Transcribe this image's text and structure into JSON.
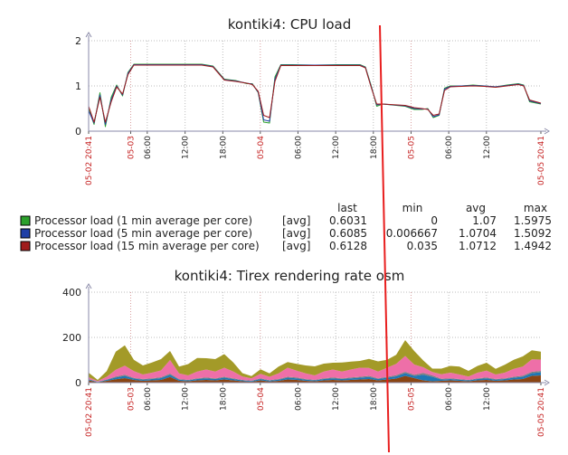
{
  "chart_data": [
    {
      "type": "line",
      "title": "kontiki4: CPU load",
      "ylim": [
        0,
        2
      ],
      "y_ticks": [
        "0",
        "1",
        "2"
      ],
      "x_ticks": [
        {
          "label": "05-02 20:41",
          "pos": 0,
          "color": "red"
        },
        {
          "label": "05-03",
          "pos": 0.093,
          "color": "red"
        },
        {
          "label": "06:00",
          "pos": 0.1296,
          "color": "black"
        },
        {
          "label": "12:00",
          "pos": 0.2133,
          "color": "black"
        },
        {
          "label": "18:00",
          "pos": 0.2967,
          "color": "black"
        },
        {
          "label": "05-04",
          "pos": 0.3796,
          "color": "red"
        },
        {
          "label": "06:00",
          "pos": 0.4629,
          "color": "black"
        },
        {
          "label": "12:00",
          "pos": 0.5463,
          "color": "black"
        },
        {
          "label": "18:00",
          "pos": 0.6296,
          "color": "black"
        },
        {
          "label": "05-05",
          "pos": 0.713,
          "color": "red"
        },
        {
          "label": "06:00",
          "pos": 0.7963,
          "color": "black"
        },
        {
          "label": "12:00",
          "pos": 0.8796,
          "color": "black"
        },
        {
          "label": "05-05 20:41",
          "pos": 1,
          "color": "red"
        }
      ],
      "x": [
        0,
        0.012,
        0.025,
        0.037,
        0.05,
        0.062,
        0.075,
        0.087,
        0.1,
        0.112,
        0.125,
        0.15,
        0.2,
        0.25,
        0.275,
        0.3,
        0.325,
        0.35,
        0.362,
        0.375,
        0.387,
        0.4,
        0.412,
        0.425,
        0.45,
        0.5,
        0.55,
        0.6,
        0.612,
        0.625,
        0.637,
        0.65,
        0.7,
        0.72,
        0.737,
        0.75,
        0.762,
        0.775,
        0.787,
        0.8,
        0.825,
        0.85,
        0.875,
        0.9,
        0.925,
        0.95,
        0.962,
        0.975,
        1
      ],
      "series": [
        {
          "name": "Processor load (1 min average per core)",
          "color": "#2ca02c",
          "values": [
            0.5,
            0.15,
            0.85,
            0.1,
            0.75,
            1.02,
            0.78,
            1.3,
            1.48,
            1.48,
            1.48,
            1.48,
            1.48,
            1.48,
            1.44,
            1.15,
            1.12,
            1.05,
            1.05,
            0.85,
            0.2,
            0.18,
            1.2,
            1.47,
            1.47,
            1.46,
            1.47,
            1.47,
            1.42,
            1.0,
            0.55,
            0.6,
            0.55,
            0.48,
            0.48,
            0.5,
            0.3,
            0.35,
            0.95,
            1.0,
            1.0,
            1.02,
            1.0,
            0.98,
            1.02,
            1.05,
            1.02,
            0.65,
            0.6
          ]
        },
        {
          "name": "Processor load (5 min average per core)",
          "color": "#1f3fa6",
          "values": [
            0.45,
            0.18,
            0.8,
            0.15,
            0.7,
            1.0,
            0.8,
            1.28,
            1.47,
            1.47,
            1.47,
            1.47,
            1.47,
            1.47,
            1.43,
            1.14,
            1.11,
            1.06,
            1.04,
            0.86,
            0.25,
            0.22,
            1.15,
            1.46,
            1.46,
            1.46,
            1.46,
            1.46,
            1.41,
            0.98,
            0.58,
            0.6,
            0.56,
            0.5,
            0.49,
            0.49,
            0.32,
            0.36,
            0.93,
            0.99,
            1.0,
            1.01,
            1.0,
            0.98,
            1.01,
            1.04,
            1.01,
            0.67,
            0.61
          ]
        },
        {
          "name": "Processor load (15 min average per core)",
          "color": "#a01c1c",
          "values": [
            0.55,
            0.2,
            0.75,
            0.2,
            0.65,
            0.98,
            0.82,
            1.25,
            1.46,
            1.46,
            1.46,
            1.46,
            1.46,
            1.46,
            1.42,
            1.13,
            1.1,
            1.06,
            1.03,
            0.88,
            0.35,
            0.3,
            1.1,
            1.45,
            1.45,
            1.45,
            1.45,
            1.45,
            1.4,
            0.96,
            0.6,
            0.6,
            0.57,
            0.52,
            0.5,
            0.48,
            0.35,
            0.38,
            0.9,
            0.98,
            0.99,
            1.0,
            0.99,
            0.97,
            1.0,
            1.03,
            1.0,
            0.69,
            0.62
          ]
        }
      ],
      "legend": {
        "headers": [
          "last",
          "min",
          "avg",
          "max"
        ],
        "rows": [
          {
            "label": "Processor load (1 min average per core)",
            "func": "[avg]",
            "last": "0.6031",
            "min": "0",
            "avg": "1.07",
            "max": "1.5975",
            "color": "#2ca02c"
          },
          {
            "label": "Processor load (5 min average per core)",
            "func": "[avg]",
            "last": "0.6085",
            "min": "0.006667",
            "avg": "1.0704",
            "max": "1.5092",
            "color": "#1f3fa6"
          },
          {
            "label": "Processor load (15 min average per core)",
            "func": "[avg]",
            "last": "0.6128",
            "min": "0.035",
            "avg": "1.0712",
            "max": "1.4942",
            "color": "#a01c1c"
          }
        ]
      }
    },
    {
      "type": "area",
      "title": "kontiki4: Tirex rendering rate osm",
      "ylim": [
        0,
        400
      ],
      "y_ticks": [
        "0",
        "200",
        "400"
      ],
      "x_ticks": [
        {
          "label": "05-02 20:41",
          "pos": 0,
          "color": "red"
        },
        {
          "label": "05-03",
          "pos": 0.093,
          "color": "red"
        },
        {
          "label": "06:00",
          "pos": 0.1296,
          "color": "black"
        },
        {
          "label": "12:00",
          "pos": 0.2133,
          "color": "black"
        },
        {
          "label": "18:00",
          "pos": 0.2967,
          "color": "black"
        },
        {
          "label": "05-04",
          "pos": 0.3796,
          "color": "red"
        },
        {
          "label": "06:00",
          "pos": 0.4629,
          "color": "black"
        },
        {
          "label": "12:00",
          "pos": 0.5463,
          "color": "black"
        },
        {
          "label": "18:00",
          "pos": 0.6296,
          "color": "black"
        },
        {
          "label": "05-05",
          "pos": 0.713,
          "color": "red"
        },
        {
          "label": "06:00",
          "pos": 0.7963,
          "color": "black"
        },
        {
          "label": "12:00",
          "pos": 0.8796,
          "color": "black"
        },
        {
          "label": "05-05 20:41",
          "pos": 1,
          "color": "red"
        }
      ],
      "x": [
        0,
        0.02,
        0.04,
        0.06,
        0.08,
        0.1,
        0.12,
        0.14,
        0.16,
        0.18,
        0.2,
        0.22,
        0.24,
        0.26,
        0.28,
        0.3,
        0.32,
        0.34,
        0.36,
        0.38,
        0.4,
        0.42,
        0.44,
        0.46,
        0.48,
        0.5,
        0.52,
        0.54,
        0.56,
        0.58,
        0.6,
        0.62,
        0.64,
        0.66,
        0.68,
        0.7,
        0.72,
        0.74,
        0.76,
        0.78,
        0.8,
        0.82,
        0.84,
        0.86,
        0.88,
        0.9,
        0.92,
        0.94,
        0.96,
        0.98,
        1
      ],
      "series": [
        {
          "name": "",
          "color": "#8b4513",
          "values": [
            10,
            2,
            8,
            15,
            20,
            12,
            8,
            10,
            12,
            25,
            8,
            6,
            10,
            12,
            10,
            14,
            10,
            6,
            4,
            10,
            5,
            8,
            14,
            12,
            8,
            6,
            10,
            12,
            10,
            12,
            14,
            16,
            10,
            14,
            18,
            30,
            20,
            10,
            6,
            8,
            10,
            8,
            6,
            10,
            12,
            8,
            10,
            14,
            16,
            30,
            32
          ]
        },
        {
          "name": "",
          "color": "#1f77b4",
          "values": [
            4,
            1,
            4,
            8,
            10,
            6,
            5,
            6,
            8,
            10,
            5,
            4,
            6,
            7,
            6,
            8,
            6,
            4,
            3,
            6,
            4,
            5,
            8,
            7,
            5,
            4,
            6,
            7,
            6,
            7,
            8,
            9,
            6,
            8,
            10,
            12,
            10,
            25,
            20,
            6,
            6,
            5,
            4,
            6,
            7,
            5,
            6,
            8,
            10,
            12,
            14
          ]
        },
        {
          "name": "",
          "color": "#7f7f7f",
          "values": [
            2,
            1,
            2,
            4,
            5,
            3,
            3,
            3,
            4,
            5,
            3,
            2,
            3,
            4,
            3,
            4,
            3,
            2,
            2,
            3,
            2,
            3,
            4,
            4,
            3,
            2,
            3,
            4,
            3,
            4,
            4,
            5,
            3,
            4,
            5,
            6,
            5,
            8,
            6,
            3,
            3,
            3,
            2,
            3,
            4,
            3,
            3,
            4,
            5,
            6,
            6
          ]
        },
        {
          "name": "",
          "color": "#ee6fa8",
          "values": [
            8,
            3,
            12,
            30,
            40,
            30,
            20,
            25,
            30,
            60,
            25,
            20,
            30,
            35,
            30,
            40,
            30,
            15,
            10,
            20,
            15,
            25,
            40,
            30,
            25,
            20,
            30,
            35,
            30,
            35,
            40,
            35,
            30,
            40,
            50,
            70,
            45,
            25,
            15,
            20,
            25,
            20,
            15,
            25,
            30,
            20,
            25,
            35,
            40,
            55,
            50
          ]
        },
        {
          "name": "",
          "color": "#a39a28",
          "values": [
            20,
            5,
            25,
            80,
            90,
            50,
            40,
            45,
            50,
            40,
            30,
            50,
            60,
            50,
            55,
            60,
            40,
            15,
            10,
            20,
            15,
            30,
            25,
            30,
            35,
            40,
            35,
            30,
            40,
            35,
            30,
            40,
            45,
            35,
            40,
            70,
            60,
            30,
            15,
            25,
            30,
            35,
            25,
            30,
            35,
            25,
            35,
            40,
            45,
            40,
            35
          ]
        }
      ]
    }
  ]
}
